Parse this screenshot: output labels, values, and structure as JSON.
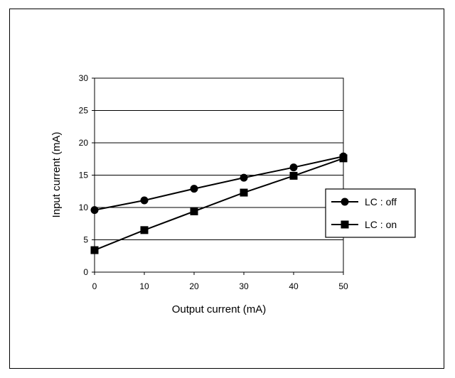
{
  "chart_data": {
    "type": "line",
    "xlabel": "Output current (mA)",
    "ylabel": "Input current (mA)",
    "x": [
      0,
      10,
      20,
      30,
      40,
      50
    ],
    "xticks": [
      "0",
      "10",
      "20",
      "30",
      "40",
      "50"
    ],
    "yticks": [
      "0",
      "5",
      "10",
      "15",
      "20",
      "25",
      "30"
    ],
    "xlim": [
      0,
      50
    ],
    "ylim": [
      0,
      30
    ],
    "grid": "horizontal",
    "legend_position": "right",
    "series": [
      {
        "name": "LC : off",
        "marker": "circle",
        "values": [
          9.6,
          11.1,
          12.9,
          14.6,
          16.2,
          17.9
        ]
      },
      {
        "name": "LC : on",
        "marker": "square",
        "values": [
          3.4,
          6.5,
          9.4,
          12.3,
          14.9,
          17.6
        ]
      }
    ]
  }
}
